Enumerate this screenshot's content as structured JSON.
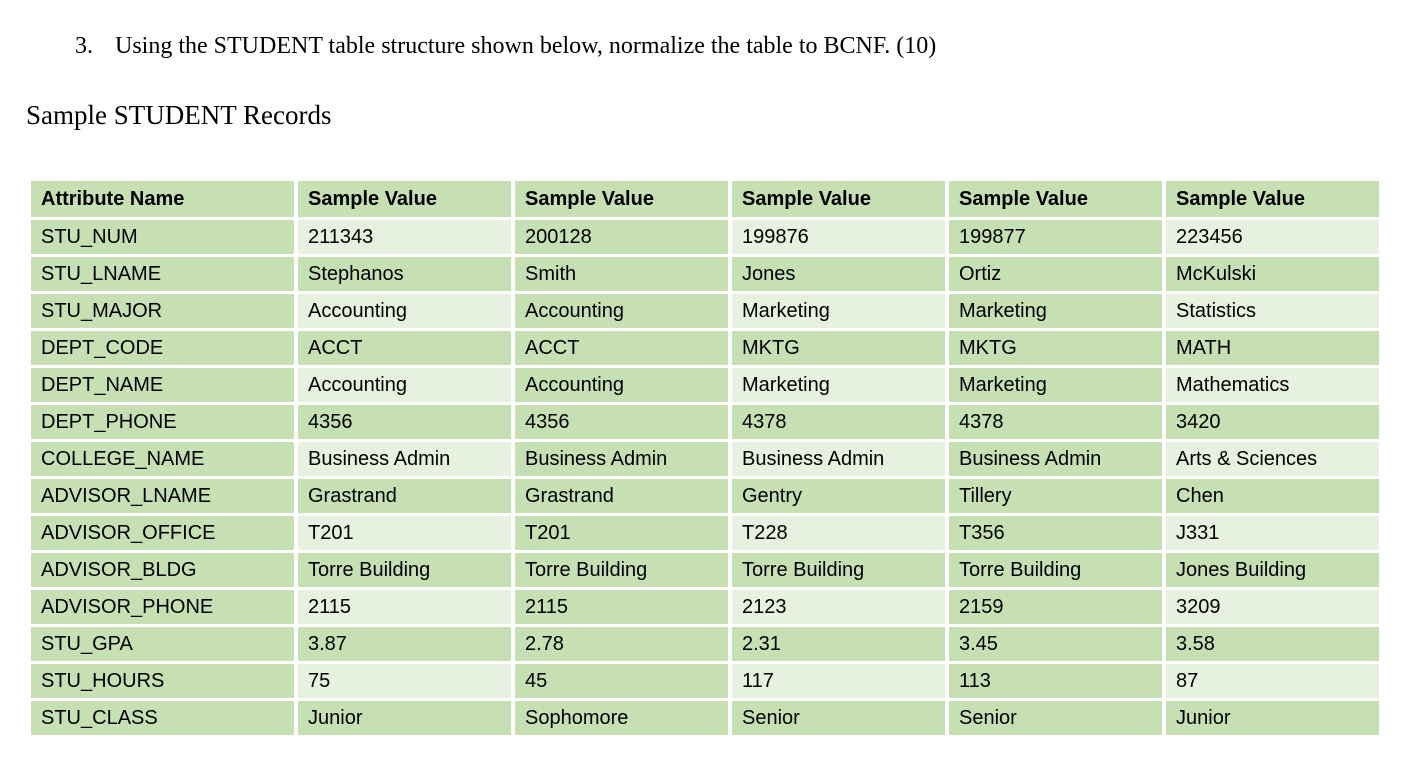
{
  "page": {
    "background": "#ffffff"
  },
  "question": {
    "number": "3.",
    "text": "Using the STUDENT table structure shown below, normalize the table to BCNF. (10)"
  },
  "subtitle": "Sample STUDENT Records",
  "colors": {
    "band_fill": "#c6e0b4",
    "light_fill": "#e7f1e0",
    "grid": "#ffffff",
    "text": "#000000"
  },
  "table": {
    "headers": [
      "Attribute Name",
      "Sample Value",
      "Sample Value",
      "Sample Value",
      "Sample Value",
      "Sample Value"
    ],
    "rows": [
      {
        "attribute": "STU_NUM",
        "values": [
          "211343",
          "200128",
          "199876",
          "199877",
          "223456"
        ]
      },
      {
        "attribute": "STU_LNAME",
        "values": [
          "Stephanos",
          "Smith",
          "Jones",
          "Ortiz",
          "McKulski"
        ]
      },
      {
        "attribute": "STU_MAJOR",
        "values": [
          "Accounting",
          "Accounting",
          "Marketing",
          "Marketing",
          "Statistics"
        ]
      },
      {
        "attribute": "DEPT_CODE",
        "values": [
          "ACCT",
          "ACCT",
          "MKTG",
          "MKTG",
          "MATH"
        ]
      },
      {
        "attribute": "DEPT_NAME",
        "values": [
          "Accounting",
          "Accounting",
          "Marketing",
          "Marketing",
          "Mathematics"
        ]
      },
      {
        "attribute": "DEPT_PHONE",
        "values": [
          "4356",
          "4356",
          "4378",
          "4378",
          "3420"
        ]
      },
      {
        "attribute": "COLLEGE_NAME",
        "values": [
          "Business Admin",
          "Business Admin",
          "Business Admin",
          "Business Admin",
          "Arts & Sciences"
        ]
      },
      {
        "attribute": "ADVISOR_LNAME",
        "values": [
          "Grastrand",
          "Grastrand",
          "Gentry",
          "Tillery",
          "Chen"
        ]
      },
      {
        "attribute": "ADVISOR_OFFICE",
        "values": [
          "T201",
          "T201",
          "T228",
          "T356",
          "J331"
        ]
      },
      {
        "attribute": "ADVISOR_BLDG",
        "values": [
          "Torre Building",
          "Torre Building",
          "Torre Building",
          "Torre Building",
          "Jones Building"
        ]
      },
      {
        "attribute": "ADVISOR_PHONE",
        "values": [
          "2115",
          "2115",
          "2123",
          "2159",
          "3209"
        ]
      },
      {
        "attribute": "STU_GPA",
        "values": [
          "3.87",
          "2.78",
          "2.31",
          "3.45",
          "3.58"
        ]
      },
      {
        "attribute": "STU_HOURS",
        "values": [
          "75",
          "45",
          "117",
          "113",
          "87"
        ]
      },
      {
        "attribute": "STU_CLASS",
        "values": [
          "Junior",
          "Sophomore",
          "Senior",
          "Senior",
          "Junior"
        ]
      }
    ]
  }
}
